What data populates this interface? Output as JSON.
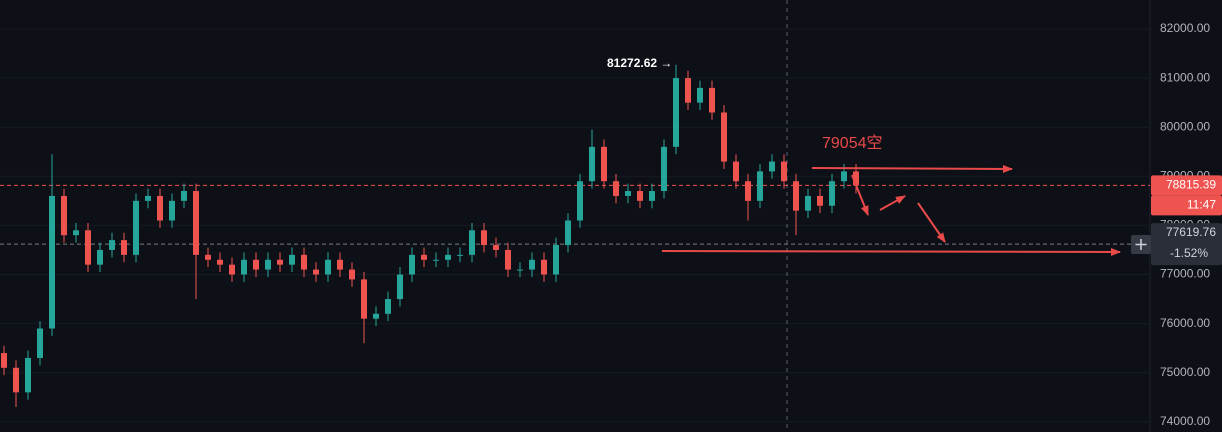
{
  "chart_data": {
    "type": "candlestick",
    "categories": [
      null,
      null,
      null,
      null,
      null,
      null,
      null,
      null,
      null,
      null,
      null,
      null,
      null,
      null,
      null,
      null,
      null,
      null,
      null,
      null,
      null,
      null,
      null,
      null,
      null,
      null,
      null,
      null,
      null,
      null,
      null,
      null,
      null,
      null,
      null,
      null,
      null,
      null,
      null,
      null,
      null,
      null,
      null,
      null,
      null,
      null,
      null,
      null,
      null,
      null,
      null,
      null,
      null,
      null,
      null,
      null,
      null,
      null,
      null,
      null,
      null,
      null,
      null,
      null,
      null,
      null,
      null,
      null,
      null,
      null,
      null,
      null
    ],
    "open": [
      75400,
      75100,
      74600,
      75300,
      75900,
      78600,
      77800,
      77900,
      77200,
      77500,
      77700,
      77400,
      78500,
      78600,
      78100,
      78500,
      78700,
      77400,
      77300,
      77200,
      77000,
      77300,
      77100,
      77300,
      77200,
      77400,
      77100,
      77000,
      77300,
      77100,
      76900,
      76100,
      76200,
      76500,
      77000,
      77400,
      77300,
      77300,
      77400,
      77400,
      77900,
      77600,
      77500,
      77100,
      77100,
      77300,
      77000,
      77600,
      78100,
      78900,
      79600,
      78900,
      78600,
      78700,
      78500,
      78700,
      79600,
      81000,
      80500,
      80800,
      80300,
      79300,
      78900,
      78500,
      79100,
      79300,
      78900,
      78300,
      78600,
      78400,
      78900,
      79100
    ],
    "high": [
      75550,
      75250,
      75450,
      76050,
      79450,
      78750,
      78050,
      78050,
      77650,
      77850,
      77850,
      78650,
      78750,
      78750,
      78650,
      78850,
      78850,
      77550,
      77450,
      77350,
      77450,
      77450,
      77450,
      77450,
      77550,
      77550,
      77250,
      77450,
      77450,
      77250,
      77050,
      76350,
      76650,
      77150,
      77550,
      77550,
      77450,
      77550,
      77550,
      78050,
      78050,
      77750,
      77650,
      77250,
      77450,
      77450,
      77750,
      78250,
      79050,
      79950,
      79750,
      79050,
      78850,
      78850,
      78850,
      79750,
      81272.62,
      81150,
      80950,
      80950,
      80450,
      79450,
      79050,
      79250,
      79450,
      79450,
      79050,
      78750,
      78750,
      79050,
      79250,
      79250
    ],
    "low": [
      74950,
      74300,
      74450,
      75150,
      75750,
      77650,
      77650,
      77050,
      77050,
      77350,
      77250,
      77250,
      78350,
      77950,
      77950,
      78350,
      76500,
      77150,
      77050,
      76850,
      76850,
      76950,
      76950,
      77050,
      77050,
      76950,
      76850,
      76850,
      76950,
      76750,
      75600,
      75950,
      76050,
      76350,
      76850,
      77150,
      77150,
      77150,
      77250,
      77250,
      77450,
      77350,
      76950,
      76950,
      76950,
      76850,
      76850,
      77450,
      77950,
      78750,
      78750,
      78450,
      78450,
      78350,
      78350,
      78550,
      79450,
      80350,
      80350,
      80150,
      79150,
      78750,
      78100,
      78350,
      78950,
      78750,
      77800,
      78150,
      78250,
      78250,
      78750,
      78650
    ],
    "close": [
      75100,
      74600,
      75300,
      75900,
      78600,
      77800,
      77900,
      77200,
      77500,
      77700,
      77400,
      78500,
      78600,
      78100,
      78500,
      78700,
      77400,
      77300,
      77200,
      77000,
      77300,
      77100,
      77300,
      77200,
      77400,
      77100,
      77000,
      77300,
      77100,
      76900,
      76100,
      76200,
      76500,
      77000,
      77400,
      77300,
      77300,
      77400,
      77400,
      77900,
      77600,
      77500,
      77100,
      77100,
      77300,
      77000,
      77600,
      78100,
      78900,
      79600,
      78900,
      78600,
      78700,
      78500,
      78700,
      79600,
      81000,
      80500,
      80800,
      80300,
      79300,
      78900,
      78500,
      79100,
      79300,
      78900,
      78300,
      78600,
      78400,
      78900,
      79100,
      78815.39
    ],
    "up_color": "#26a69a",
    "down_color": "#ef5350",
    "ylim": [
      73792,
      82591
    ],
    "yticks": [
      {
        "value": 74000,
        "label": "74000.00"
      },
      {
        "value": 75000,
        "label": "75000.00"
      },
      {
        "value": 76000,
        "label": "76000.00"
      },
      {
        "value": 77000,
        "label": "77000.00"
      },
      {
        "value": 78000,
        "label": "78000.00"
      },
      {
        "value": 79000,
        "label": "79000.00"
      },
      {
        "value": 80000,
        "label": "80000.00"
      },
      {
        "value": 81000,
        "label": "81000.00"
      },
      {
        "value": 82000,
        "label": "82000.00"
      }
    ],
    "high_label": "81272.62 →",
    "annotation": "79054空",
    "last_price": 78815.39,
    "countdown": "11:47",
    "ref_price": 77619.76,
    "change_label": "-1.52%"
  }
}
